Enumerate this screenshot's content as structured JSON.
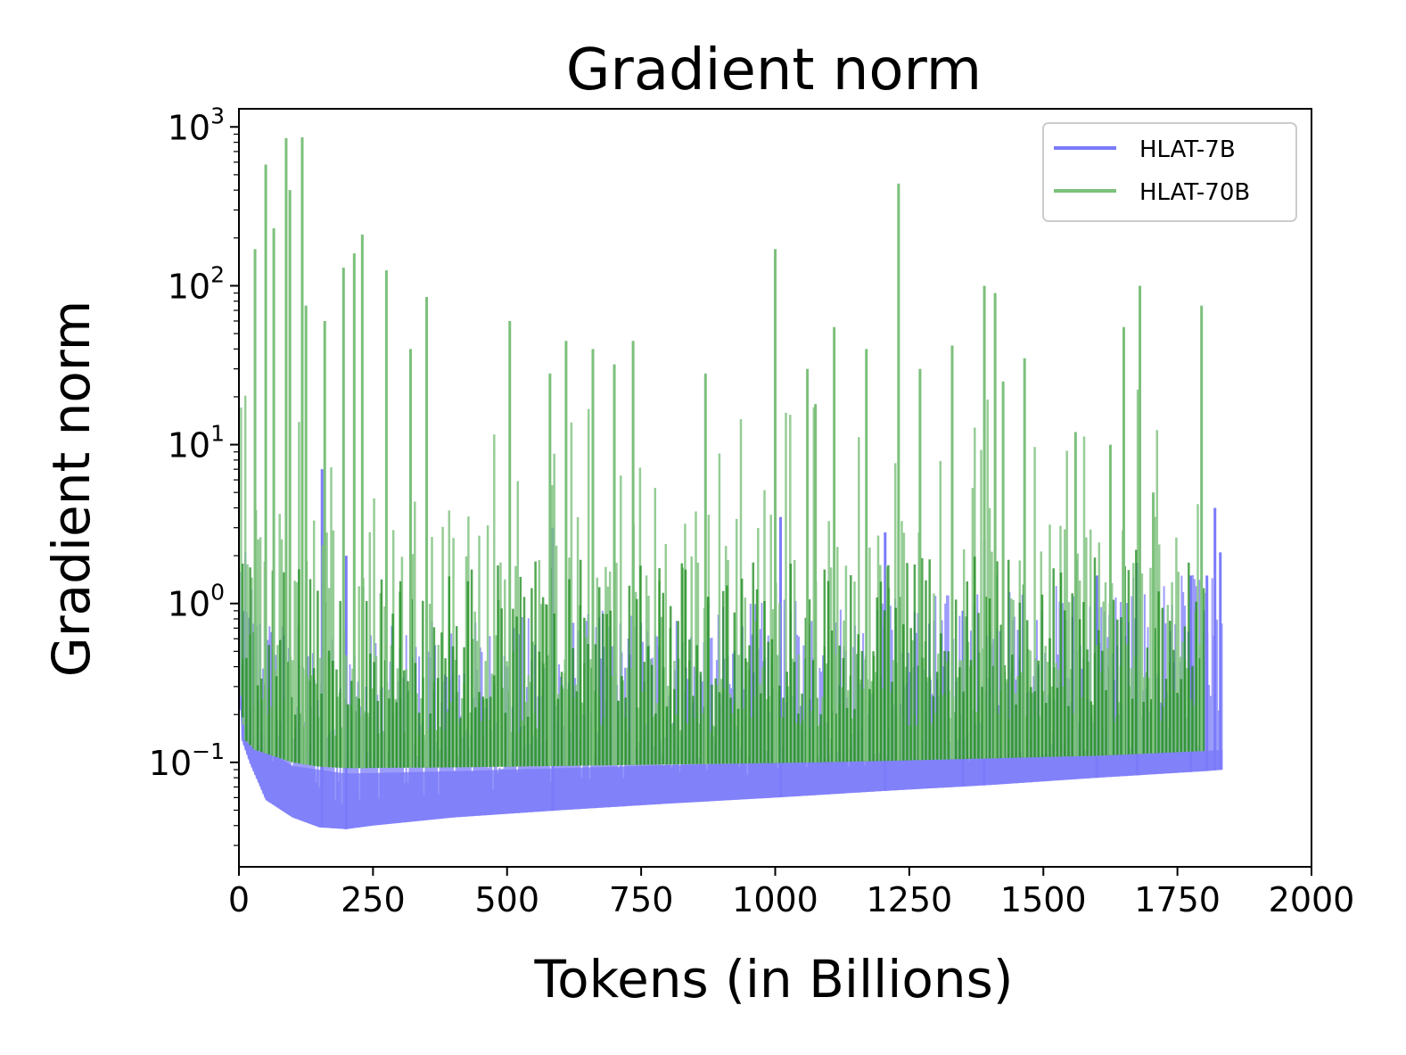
{
  "chart_data": {
    "type": "line",
    "title": "Gradient norm",
    "xlabel": "Tokens (in Billions)",
    "ylabel": "Gradient norm",
    "xlim": [
      0,
      2000
    ],
    "ylim": [
      0.022,
      1300
    ],
    "yscale": "log",
    "grid": false,
    "legend_position": "top-right",
    "x_ticks": [
      "0",
      "250",
      "500",
      "750",
      "1000",
      "1250",
      "1500",
      "1750",
      "2000"
    ],
    "y_ticks": [
      {
        "value": 0.1,
        "base": "10",
        "exp": "−1"
      },
      {
        "value": 1,
        "base": "10",
        "exp": "0"
      },
      {
        "value": 10,
        "base": "10",
        "exp": "1"
      },
      {
        "value": 100,
        "base": "10",
        "exp": "2"
      },
      {
        "value": 1000,
        "base": "10",
        "exp": "3"
      }
    ],
    "series": [
      {
        "name": "HLAT-7B",
        "color": "#7b7bfa",
        "baseline": {
          "x": [
            0,
            5,
            20,
            50,
            100,
            150,
            200,
            250,
            400,
            600,
            800,
            1000,
            1200,
            1400,
            1600,
            1800,
            1835
          ],
          "y": [
            0.4,
            0.14,
            0.1,
            0.058,
            0.045,
            0.039,
            0.038,
            0.04,
            0.045,
            0.05,
            0.055,
            0.06,
            0.066,
            0.072,
            0.08,
            0.088,
            0.09
          ]
        },
        "upper_band": {
          "x": [
            0,
            20,
            100,
            200,
            400,
            600,
            800,
            1000,
            1200,
            1400,
            1600,
            1800,
            1835
          ],
          "y": [
            0.3,
            0.14,
            0.095,
            0.085,
            0.088,
            0.092,
            0.096,
            0.1,
            0.104,
            0.108,
            0.112,
            0.118,
            0.12
          ]
        },
        "spikes": {
          "x": [
            155,
            200,
            585,
            1010,
            1205,
            1350,
            1390,
            1600,
            1675,
            1775,
            1805,
            1820,
            1830
          ],
          "y": [
            7.0,
            2.0,
            3.0,
            3.5,
            2.8,
            0.9,
            2.5,
            1.5,
            1.8,
            1.5,
            1.5,
            4.0,
            2.1
          ]
        }
      },
      {
        "name": "HLAT-70B",
        "color": "#7cc07c",
        "baseline": {
          "x": [
            0,
            10,
            30,
            100,
            150,
            200,
            400,
            600,
            800,
            1000,
            1200,
            1400,
            1600,
            1800
          ],
          "y": [
            0.4,
            0.14,
            0.12,
            0.1,
            0.094,
            0.092,
            0.093,
            0.095,
            0.097,
            0.099,
            0.102,
            0.106,
            0.11,
            0.118
          ]
        },
        "spikes": {
          "x": [
            30,
            50,
            65,
            88,
            95,
            118,
            125,
            160,
            195,
            215,
            230,
            275,
            320,
            350,
            505,
            580,
            610,
            660,
            700,
            735,
            870,
            1000,
            1060,
            1075,
            1110,
            1170,
            1230,
            1270,
            1330,
            1390,
            1410,
            1425,
            1465,
            1560,
            1625,
            1650,
            1680,
            1705,
            1795
          ],
          "y": [
            170,
            580,
            230,
            850,
            400,
            860,
            75,
            60,
            130,
            160,
            210,
            125,
            40,
            85,
            60,
            28,
            45,
            40,
            32,
            45,
            28,
            170,
            30,
            18,
            55,
            40,
            440,
            30,
            42,
            100,
            90,
            25,
            35,
            12,
            10,
            55,
            100,
            5,
            75
          ]
        }
      }
    ]
  }
}
